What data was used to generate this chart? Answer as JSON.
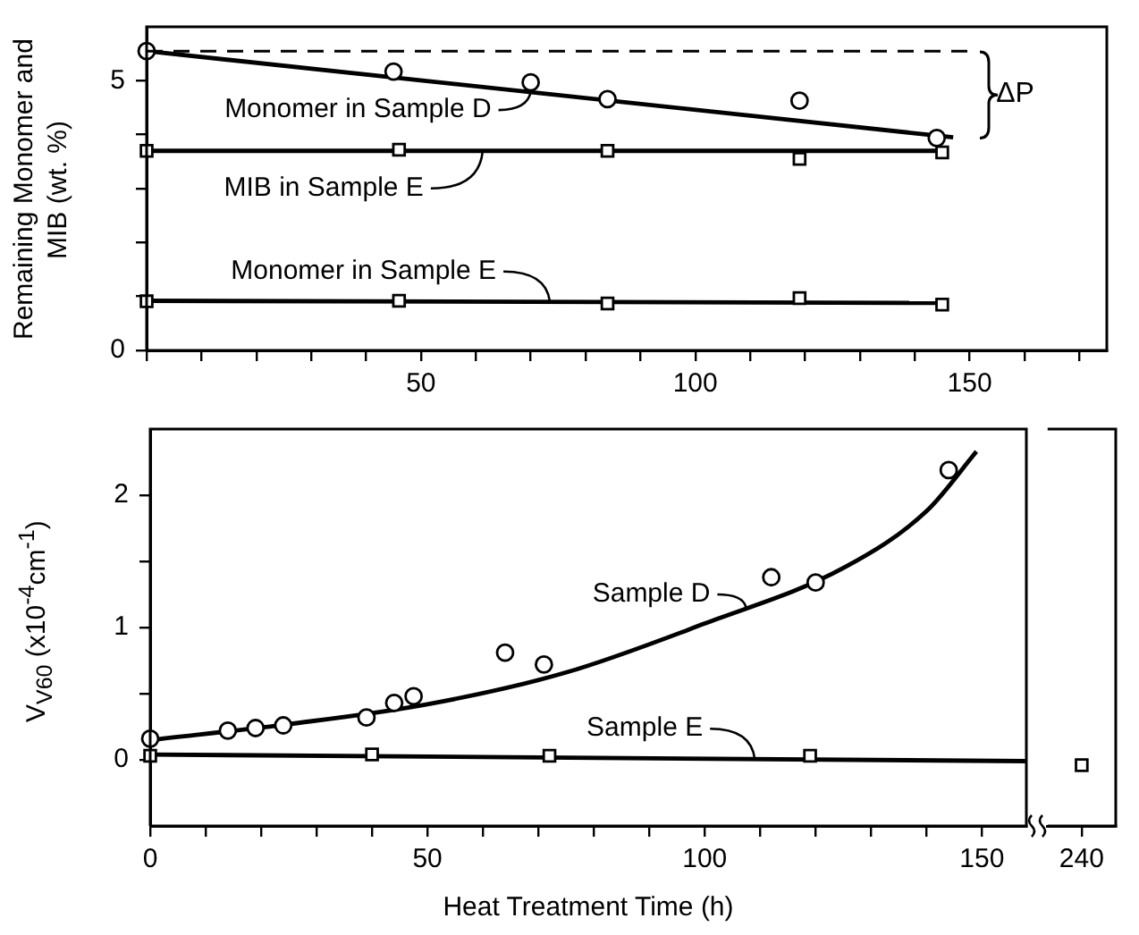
{
  "chart_data": [
    {
      "type": "scatter",
      "ylabel": "Remaining Monomer and MIB (wt. %)",
      "xlim": [
        0,
        175
      ],
      "ylim": [
        0,
        6
      ],
      "xticks": [
        {
          "value": 0,
          "label": null
        },
        {
          "value": 10,
          "label": null
        },
        {
          "value": 20,
          "label": null
        },
        {
          "value": 30,
          "label": null
        },
        {
          "value": 40,
          "label": null
        },
        50,
        {
          "value": 60,
          "label": null
        },
        {
          "value": 70,
          "label": null
        },
        {
          "value": 80,
          "label": null
        },
        {
          "value": 90,
          "label": null
        },
        100,
        {
          "value": 110,
          "label": null
        },
        {
          "value": 120,
          "label": null
        },
        {
          "value": 130,
          "label": null
        },
        {
          "value": 140,
          "label": null
        },
        150,
        {
          "value": 160,
          "label": null
        },
        {
          "value": 170,
          "label": null
        }
      ],
      "yticks": [
        0,
        {
          "value": 1,
          "label": null
        },
        {
          "value": 2,
          "label": null
        },
        {
          "value": 3,
          "label": null
        },
        {
          "value": 4,
          "label": null
        },
        5
      ],
      "grid": false,
      "legend": "left",
      "ref_lines": [
        {
          "axis": "y",
          "value": 5.55,
          "line_style": "dashed"
        }
      ],
      "annotations": [
        "ΔP"
      ],
      "series": [
        {
          "marker": "circle",
          "color": "#000000",
          "x": [
            0,
            45,
            70,
            84,
            119,
            144
          ],
          "values": [
            5.55,
            5.17,
            4.97,
            4.66,
            4.63,
            3.94
          ]
        },
        {
          "name": "Monomer in Sample D",
          "type": "line",
          "marker": "none",
          "color": "#000000",
          "x": [
            0,
            147
          ],
          "values": [
            5.55,
            3.95
          ]
        },
        {
          "marker": "square",
          "color": "#000000",
          "x": [
            0,
            46,
            84,
            119,
            145
          ],
          "values": [
            3.7,
            3.72,
            3.7,
            3.55,
            3.67
          ]
        },
        {
          "name": "MIB in Sample E",
          "type": "line",
          "marker": "none",
          "color": "#000000",
          "x": [
            0,
            145
          ],
          "values": [
            3.7,
            3.7
          ]
        },
        {
          "marker": "square",
          "color": "#000000",
          "x": [
            0,
            46,
            84,
            119,
            145
          ],
          "values": [
            0.91,
            0.92,
            0.87,
            0.97,
            0.85
          ]
        },
        {
          "name": "Monomer in Sample E",
          "type": "line",
          "marker": "none",
          "color": "#000000",
          "x": [
            0,
            145
          ],
          "values": [
            0.92,
            0.88
          ]
        }
      ]
    },
    {
      "type": "scatter",
      "xlabel": "Heat Treatment Time (h)",
      "ylabel": "V$_{V60}$ (x10$^{-4}$cm$^{-1}$)",
      "xlim": [
        0,
        158
      ],
      "ylim": [
        -0.5,
        2.5
      ],
      "xticks": [
        0,
        {
          "value": 10,
          "label": null
        },
        {
          "value": 20,
          "label": null
        },
        {
          "value": 30,
          "label": null
        },
        {
          "value": 40,
          "label": null
        },
        50,
        {
          "value": 60,
          "label": null
        },
        {
          "value": 70,
          "label": null
        },
        {
          "value": 80,
          "label": null
        },
        {
          "value": 90,
          "label": null
        },
        100,
        {
          "value": 110,
          "label": null
        },
        {
          "value": 120,
          "label": null
        },
        {
          "value": 130,
          "label": null
        },
        {
          "value": 140,
          "label": null
        },
        150
      ],
      "yticks": [
        0,
        {
          "value": 0.5,
          "label": null
        },
        1,
        {
          "value": 1.5,
          "label": null
        },
        2
      ],
      "grid": false,
      "legend": "bottom right",
      "series": [
        {
          "marker": "circle",
          "color": "#000000",
          "x": [
            0,
            14,
            19,
            24,
            39,
            44,
            47.5,
            64,
            71,
            112,
            120,
            144
          ],
          "values": [
            0.16,
            0.22,
            0.24,
            0.26,
            0.32,
            0.43,
            0.48,
            0.81,
            0.72,
            1.38,
            1.34,
            2.19
          ]
        },
        {
          "name": "Sample D",
          "type": "line",
          "marker": "none",
          "color": "#000000",
          "x": [
            0,
            25,
            50,
            75,
            100,
            125,
            140,
            149
          ],
          "values": [
            0.15,
            0.27,
            0.42,
            0.66,
            1.03,
            1.45,
            1.88,
            2.33
          ]
        },
        {
          "marker": "square",
          "color": "#000000",
          "x": [
            0,
            40,
            72,
            119
          ],
          "values": [
            0.03,
            0.04,
            0.03,
            0.03
          ]
        },
        {
          "name": "Sample E",
          "type": "line",
          "marker": "none",
          "color": "#000000",
          "x": [
            0,
            158
          ],
          "values": [
            0.04,
            -0.01
          ]
        }
      ]
    },
    {
      "type": "scatter",
      "categories": [
        "240"
      ],
      "ylim": [
        -0.5,
        2.5
      ],
      "tick_labels": "x",
      "grid": false,
      "series": [
        {
          "marker": "square",
          "color": "#000000",
          "x": [
            "240"
          ],
          "values": [
            -0.04
          ]
        }
      ]
    }
  ]
}
